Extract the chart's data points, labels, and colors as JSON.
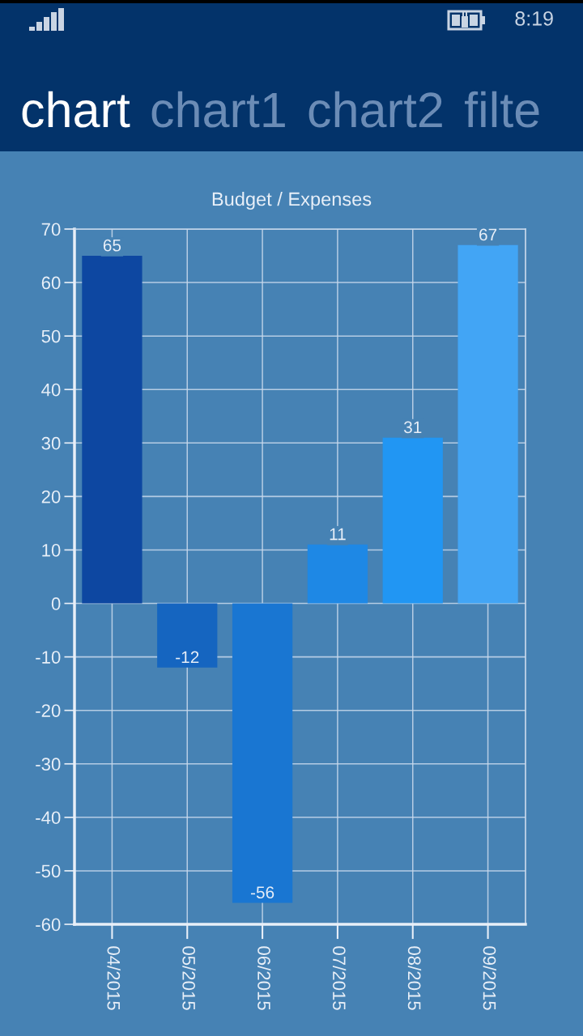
{
  "chart_data": {
    "type": "bar",
    "title": "Budget / Expenses",
    "categories": [
      "04/2015",
      "05/2015",
      "06/2015",
      "07/2015",
      "08/2015",
      "09/2015"
    ],
    "values": [
      65,
      -12,
      -56,
      11,
      31,
      67
    ],
    "colors": [
      "#0d47a1",
      "#1565c0",
      "#1976d2",
      "#1e88e5",
      "#2196f3",
      "#42a5f5"
    ],
    "ylim": [
      -60,
      70
    ],
    "yticks": [
      -60,
      -50,
      -40,
      -30,
      -20,
      -10,
      0,
      10,
      20,
      30,
      40,
      50,
      60,
      70
    ],
    "grid": true,
    "data_labels": true,
    "annotations": [
      "8:19",
      "chart",
      "chart1",
      "chart2",
      "filte"
    ]
  }
}
